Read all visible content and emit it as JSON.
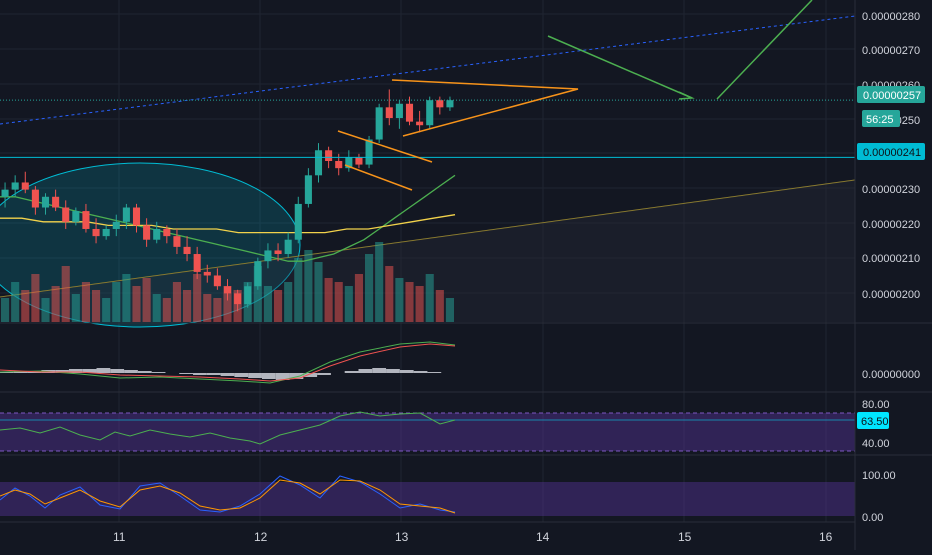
{
  "colors": {
    "background": "#131722",
    "grid": "#1f2431",
    "bull": "#26a69a",
    "bear": "#ef5350",
    "axis_text": "#d1d4dc",
    "current_price_bg": "#26a69a",
    "hline_color": "#00bcd4",
    "drawing_orange": "#f7931a",
    "drawing_green": "#4caf50",
    "ma_green": "#4caf50",
    "ma_yellow": "#f2d24b",
    "oscillator_band": "#4a2a6e"
  },
  "price_axis": {
    "ticks": [
      "0.00000280",
      "0.00000270",
      "0.00000260",
      "0.00000250",
      "0.00000230",
      "0.00000220",
      "0.00000210",
      "0.00000200"
    ],
    "current_price_label": "0.00000257",
    "countdown_label": "56:25",
    "hline_label": "0.00000241"
  },
  "time_axis": {
    "labels": [
      "11",
      "12",
      "13",
      "14",
      "15",
      "16"
    ]
  },
  "macd_axis": {
    "labels": [
      "0.00000000"
    ]
  },
  "rsi_axis": {
    "labels": [
      "80.00",
      "40.00"
    ],
    "current_label": "63.50"
  },
  "stoch_axis": {
    "labels": [
      "100.00",
      "0.00"
    ]
  },
  "chart_data": {
    "type": "candlestick",
    "ylim": [
      1.95e-06,
      2.85e-06
    ],
    "current_price": 2.57e-06,
    "horizontal_line": 2.41e-06,
    "x_labels": [
      "11",
      "12",
      "13",
      "14",
      "15",
      "16"
    ],
    "candles_ohlc": [
      [
        2.3,
        2.34,
        2.27,
        2.32
      ],
      [
        2.32,
        2.36,
        2.3,
        2.34
      ],
      [
        2.34,
        2.37,
        2.31,
        2.32
      ],
      [
        2.32,
        2.33,
        2.25,
        2.27
      ],
      [
        2.27,
        2.31,
        2.25,
        2.3
      ],
      [
        2.3,
        2.32,
        2.26,
        2.27
      ],
      [
        2.27,
        2.29,
        2.21,
        2.23
      ],
      [
        2.23,
        2.27,
        2.22,
        2.26
      ],
      [
        2.26,
        2.28,
        2.2,
        2.21
      ],
      [
        2.21,
        2.24,
        2.17,
        2.19
      ],
      [
        2.19,
        2.22,
        2.18,
        2.21
      ],
      [
        2.21,
        2.25,
        2.19,
        2.23
      ],
      [
        2.23,
        2.28,
        2.21,
        2.27
      ],
      [
        2.27,
        2.28,
        2.2,
        2.22
      ],
      [
        2.22,
        2.24,
        2.16,
        2.18
      ],
      [
        2.18,
        2.23,
        2.17,
        2.21
      ],
      [
        2.21,
        2.22,
        2.17,
        2.19
      ],
      [
        2.19,
        2.21,
        2.14,
        2.16
      ],
      [
        2.16,
        2.19,
        2.12,
        2.14
      ],
      [
        2.14,
        2.16,
        2.07,
        2.09
      ],
      [
        2.09,
        2.11,
        2.06,
        2.08
      ],
      [
        2.08,
        2.1,
        2.04,
        2.05
      ],
      [
        2.05,
        2.07,
        2.01,
        2.03
      ],
      [
        2.03,
        2.04,
        1.98,
        2.0
      ],
      [
        2.0,
        2.06,
        1.99,
        2.05
      ],
      [
        2.05,
        2.13,
        2.04,
        2.12
      ],
      [
        2.12,
        2.17,
        2.1,
        2.15
      ],
      [
        2.15,
        2.17,
        2.12,
        2.14
      ],
      [
        2.14,
        2.2,
        2.13,
        2.18
      ],
      [
        2.18,
        2.3,
        2.17,
        2.28
      ],
      [
        2.28,
        2.38,
        2.27,
        2.36
      ],
      [
        2.36,
        2.45,
        2.34,
        2.43
      ],
      [
        2.43,
        2.44,
        2.38,
        2.4
      ],
      [
        2.4,
        2.42,
        2.36,
        2.38
      ],
      [
        2.38,
        2.43,
        2.37,
        2.41
      ],
      [
        2.41,
        2.42,
        2.38,
        2.39
      ],
      [
        2.39,
        2.47,
        2.38,
        2.46
      ],
      [
        2.46,
        2.56,
        2.45,
        2.55
      ],
      [
        2.55,
        2.6,
        2.5,
        2.52
      ],
      [
        2.52,
        2.57,
        2.49,
        2.56
      ],
      [
        2.56,
        2.58,
        2.5,
        2.51
      ],
      [
        2.51,
        2.54,
        2.48,
        2.5
      ],
      [
        2.5,
        2.58,
        2.49,
        2.57
      ],
      [
        2.57,
        2.58,
        2.53,
        2.55
      ],
      [
        2.55,
        2.58,
        2.54,
        2.57
      ]
    ],
    "volume_relative": [
      0.3,
      0.5,
      0.4,
      0.6,
      0.3,
      0.45,
      0.7,
      0.35,
      0.5,
      0.4,
      0.3,
      0.5,
      0.6,
      0.45,
      0.55,
      0.35,
      0.3,
      0.5,
      0.4,
      0.6,
      0.35,
      0.3,
      0.45,
      0.4,
      0.5,
      0.7,
      0.45,
      0.4,
      0.5,
      0.8,
      0.9,
      0.75,
      0.55,
      0.5,
      0.45,
      0.6,
      0.85,
      1.0,
      0.7,
      0.55,
      0.5,
      0.45,
      0.6,
      0.4,
      0.3
    ],
    "ma_fast": [
      2.3,
      2.3,
      2.29,
      2.28,
      2.27,
      2.26,
      2.25,
      2.24,
      2.23,
      2.22,
      2.21,
      2.2,
      2.19,
      2.18,
      2.17,
      2.16,
      2.15,
      2.14,
      2.13,
      2.12,
      2.12,
      2.13,
      2.14,
      2.16,
      2.18,
      2.21,
      2.24,
      2.27,
      2.3,
      2.33,
      2.36
    ],
    "ma_slow": [
      2.24,
      2.24,
      2.23,
      2.23,
      2.23,
      2.22,
      2.22,
      2.22,
      2.21,
      2.21,
      2.21,
      2.2,
      2.2,
      2.2,
      2.2,
      2.2,
      2.21,
      2.21,
      2.22,
      2.23,
      2.24,
      2.25
    ],
    "rsi_levels": [
      80,
      40
    ],
    "rsi_current": 63.5,
    "stoch_levels": [
      100,
      0
    ]
  }
}
